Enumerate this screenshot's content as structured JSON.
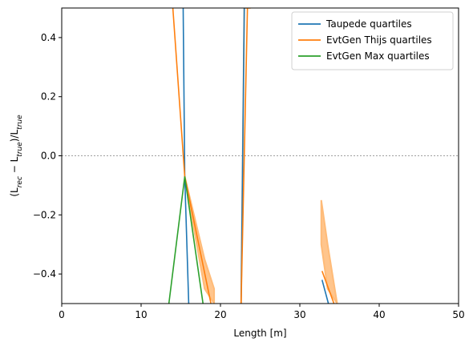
{
  "chart_data": {
    "type": "line",
    "title": "",
    "xlabel": "Length [m]",
    "ylabel_parts": [
      "(L",
      "rec",
      " − L",
      "true",
      ")/L",
      "true"
    ],
    "xlim": [
      0,
      50
    ],
    "ylim": [
      -0.5,
      0.5
    ],
    "xticks": [
      0,
      10,
      20,
      30,
      40,
      50
    ],
    "yticks": [
      -0.4,
      -0.2,
      0.0,
      0.2,
      0.4
    ],
    "xtick_labels": [
      "0",
      "10",
      "20",
      "30",
      "40",
      "50"
    ],
    "ytick_labels": [
      "−0.4",
      "−0.2",
      "0.0",
      "0.2",
      "0.4"
    ],
    "reference_line_y": 0.0,
    "legend_position": "top-right",
    "series": [
      {
        "name": "Taupede quartiles",
        "color": "#1f77b4",
        "segments": [
          [
            [
              15.3,
              0.5
            ],
            [
              15.5,
              -0.07
            ],
            [
              16.0,
              -0.5
            ]
          ],
          [
            [
              22.6,
              -0.5
            ],
            [
              23.0,
              0.5
            ]
          ],
          [
            [
              32.8,
              -0.42
            ],
            [
              33.6,
              -0.5
            ]
          ]
        ]
      },
      {
        "name": "EvtGen Thijs quartiles",
        "color": "#ff7f0e",
        "band_color": "#ffbb78",
        "segments": [
          [
            [
              14.0,
              0.5
            ],
            [
              15.5,
              -0.07
            ],
            [
              18.8,
              -0.5
            ]
          ],
          [
            [
              22.6,
              -0.5
            ],
            [
              23.4,
              0.5
            ]
          ],
          [
            [
              32.8,
              -0.39
            ],
            [
              34.3,
              -0.5
            ]
          ]
        ],
        "bands": [
          [
            [
              15.5,
              -0.07,
              -0.07
            ],
            [
              18.0,
              -0.45,
              -0.35
            ],
            [
              19.2,
              -0.5,
              -0.45
            ]
          ],
          [
            [
              22.6,
              -0.5,
              -0.5
            ],
            [
              23.0,
              0.5,
              0.5
            ],
            [
              23.8,
              0.5,
              0.5
            ]
          ],
          [
            [
              32.7,
              -0.3,
              -0.15
            ],
            [
              33.5,
              -0.45,
              -0.3
            ],
            [
              34.7,
              -0.5,
              -0.5
            ]
          ]
        ]
      },
      {
        "name": "EvtGen Max quartiles",
        "color": "#2ca02c",
        "segments": [
          [
            [
              13.5,
              -0.5
            ],
            [
              15.5,
              -0.07
            ],
            [
              17.8,
              -0.5
            ]
          ]
        ]
      }
    ]
  }
}
